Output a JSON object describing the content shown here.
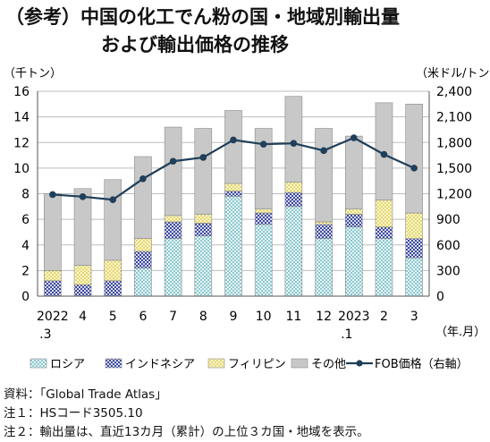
{
  "title": {
    "prefix": "（参考）",
    "line1": "中国の化工でん粉の国・地域別輸出量",
    "line2": "および輸出価格の推移"
  },
  "notes": [
    "資料：「Global Trade Atlas」",
    "注１：HSコード3505.10",
    "注２：輸出量は、直近13カ月（累計）の上位３カ国・地域を表示。"
  ],
  "colors": {
    "russia": "#a9dfe3",
    "indonesia": "#7c86c7",
    "philippines": "#f3ea8e",
    "other": "#c8c8c8",
    "fob": "#1f3f5a"
  },
  "chart_data": {
    "type": "bar",
    "stacked": true,
    "left_unit": "（千トン）",
    "right_unit": "（米ドル/トン）",
    "x_unit": "（年.月）",
    "categories": [
      "2022\n.3",
      "4",
      "5",
      "6",
      "7",
      "8",
      "9",
      "10",
      "11",
      "12",
      "2023\n.1",
      "2",
      "3"
    ],
    "ylim": [
      0,
      16
    ],
    "yticks": [
      "0",
      "2",
      "4",
      "6",
      "8",
      "10",
      "12",
      "14",
      "16"
    ],
    "y2lim": [
      0,
      2400
    ],
    "y2ticks": [
      "0",
      "300",
      "600",
      "900",
      "1,200",
      "1,500",
      "1,800",
      "2,100",
      "2,400"
    ],
    "series": [
      {
        "name": "ロシア",
        "values": [
          0.0,
          0.0,
          0.0,
          2.2,
          4.5,
          4.7,
          7.8,
          5.6,
          7.0,
          4.5,
          5.4,
          4.5,
          3.0
        ]
      },
      {
        "name": "インドネシア",
        "values": [
          1.2,
          0.9,
          1.2,
          1.3,
          1.3,
          1.0,
          0.4,
          0.9,
          1.1,
          1.1,
          1.0,
          0.9,
          1.5
        ]
      },
      {
        "name": "フィリピン",
        "values": [
          0.8,
          1.5,
          1.6,
          1.0,
          0.5,
          0.7,
          0.6,
          0.3,
          0.8,
          0.2,
          0.4,
          2.1,
          2.0
        ]
      },
      {
        "name": "その他",
        "values": [
          6.0,
          6.0,
          6.3,
          6.4,
          6.9,
          6.7,
          5.7,
          6.3,
          6.7,
          7.3,
          5.7,
          7.6,
          8.5
        ]
      }
    ],
    "line_series": {
      "name": "FOB価格（右軸）",
      "axis": "right",
      "values": [
        1190,
        1165,
        1130,
        1375,
        1580,
        1625,
        1830,
        1780,
        1790,
        1705,
        1855,
        1660,
        1500
      ]
    },
    "legend_position": "bottom"
  }
}
